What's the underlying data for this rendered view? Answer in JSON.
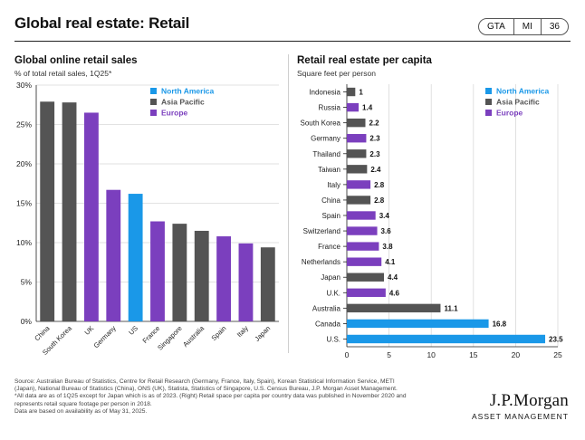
{
  "header": {
    "title": "Global real estate: Retail",
    "badges": [
      "GTA",
      "MI",
      "36"
    ]
  },
  "left_panel": {
    "title": "Global online retail sales",
    "subtitle": "% of total retail sales, 1Q25*"
  },
  "right_panel": {
    "title": "Retail real estate per capita",
    "subtitle": "Square feet per person"
  },
  "colors": {
    "North America": "#1a98e8",
    "Asia Pacific": "#545454",
    "Europe": "#7b3fbe"
  },
  "chart_data": [
    {
      "type": "bar",
      "orientation": "vertical",
      "title": "Global online retail sales",
      "categories": [
        "China",
        "South Korea",
        "UK",
        "Germany",
        "US",
        "France",
        "Singapore",
        "Australia",
        "Spain",
        "Italy",
        "Japan"
      ],
      "values": [
        27.9,
        27.8,
        26.5,
        16.7,
        16.2,
        12.7,
        12.4,
        11.5,
        10.8,
        9.9,
        9.4
      ],
      "regions": [
        "Asia Pacific",
        "Asia Pacific",
        "Europe",
        "Europe",
        "North America",
        "Europe",
        "Asia Pacific",
        "Asia Pacific",
        "Europe",
        "Europe",
        "Asia Pacific"
      ],
      "yticks": [
        "0%",
        "5%",
        "10%",
        "15%",
        "20%",
        "25%",
        "30%"
      ],
      "ylim": [
        0,
        30
      ],
      "legend": [
        "North America",
        "Asia Pacific",
        "Europe"
      ],
      "legend_position": "top-right",
      "grid": true
    },
    {
      "type": "bar",
      "orientation": "horizontal",
      "title": "Retail real estate per capita",
      "categories": [
        "Indonesia",
        "Russia",
        "South Korea",
        "Germany",
        "Thailand",
        "Taiwan",
        "Italy",
        "China",
        "Spain",
        "Switzerland",
        "France",
        "Netherlands",
        "Japan",
        "U.K.",
        "Australia",
        "Canada",
        "U.S."
      ],
      "values": [
        1,
        1.4,
        2.2,
        2.3,
        2.3,
        2.4,
        2.8,
        2.8,
        3.4,
        3.6,
        3.8,
        4.1,
        4.4,
        4.6,
        11.1,
        16.8,
        23.5
      ],
      "value_labels": [
        "1",
        "1.4",
        "2.2",
        "2.3",
        "2.3",
        "2.4",
        "2.8",
        "2.8",
        "3.4",
        "3.6",
        "3.8",
        "4.1",
        "4.4",
        "4.6",
        "11.1",
        "16.8",
        "23.5"
      ],
      "regions": [
        "Asia Pacific",
        "Europe",
        "Asia Pacific",
        "Europe",
        "Asia Pacific",
        "Asia Pacific",
        "Europe",
        "Asia Pacific",
        "Europe",
        "Europe",
        "Europe",
        "Europe",
        "Asia Pacific",
        "Europe",
        "Asia Pacific",
        "North America",
        "North America"
      ],
      "xticks": [
        "0",
        "5",
        "10",
        "15",
        "20",
        "25"
      ],
      "xlim": [
        0,
        25
      ],
      "legend": [
        "North America",
        "Asia Pacific",
        "Europe"
      ],
      "legend_position": "top-right",
      "grid": true
    }
  ],
  "footnote": [
    "Source: Australian Bureau of Statistics, Centre for Retail Research (Germany, France, Italy, Spain), Korean Statistical Information Service, METI",
    "(Japan), National Bureau of Statistics (China), ONS (UK), Statista, Statistics of Singapore, U.S. Census Bureau, J.P. Morgan Asset Management.",
    "*All data are as of 1Q25 except for Japan which is as of 2023. (Right) Retail space per capita per country data was published in November 2020 and",
    "represents retail square footage per person in 2018.",
    "Data are based on availability as of May 31, 2025."
  ],
  "logo": {
    "name": "J.P.Morgan",
    "sub": "ASSET MANAGEMENT"
  }
}
